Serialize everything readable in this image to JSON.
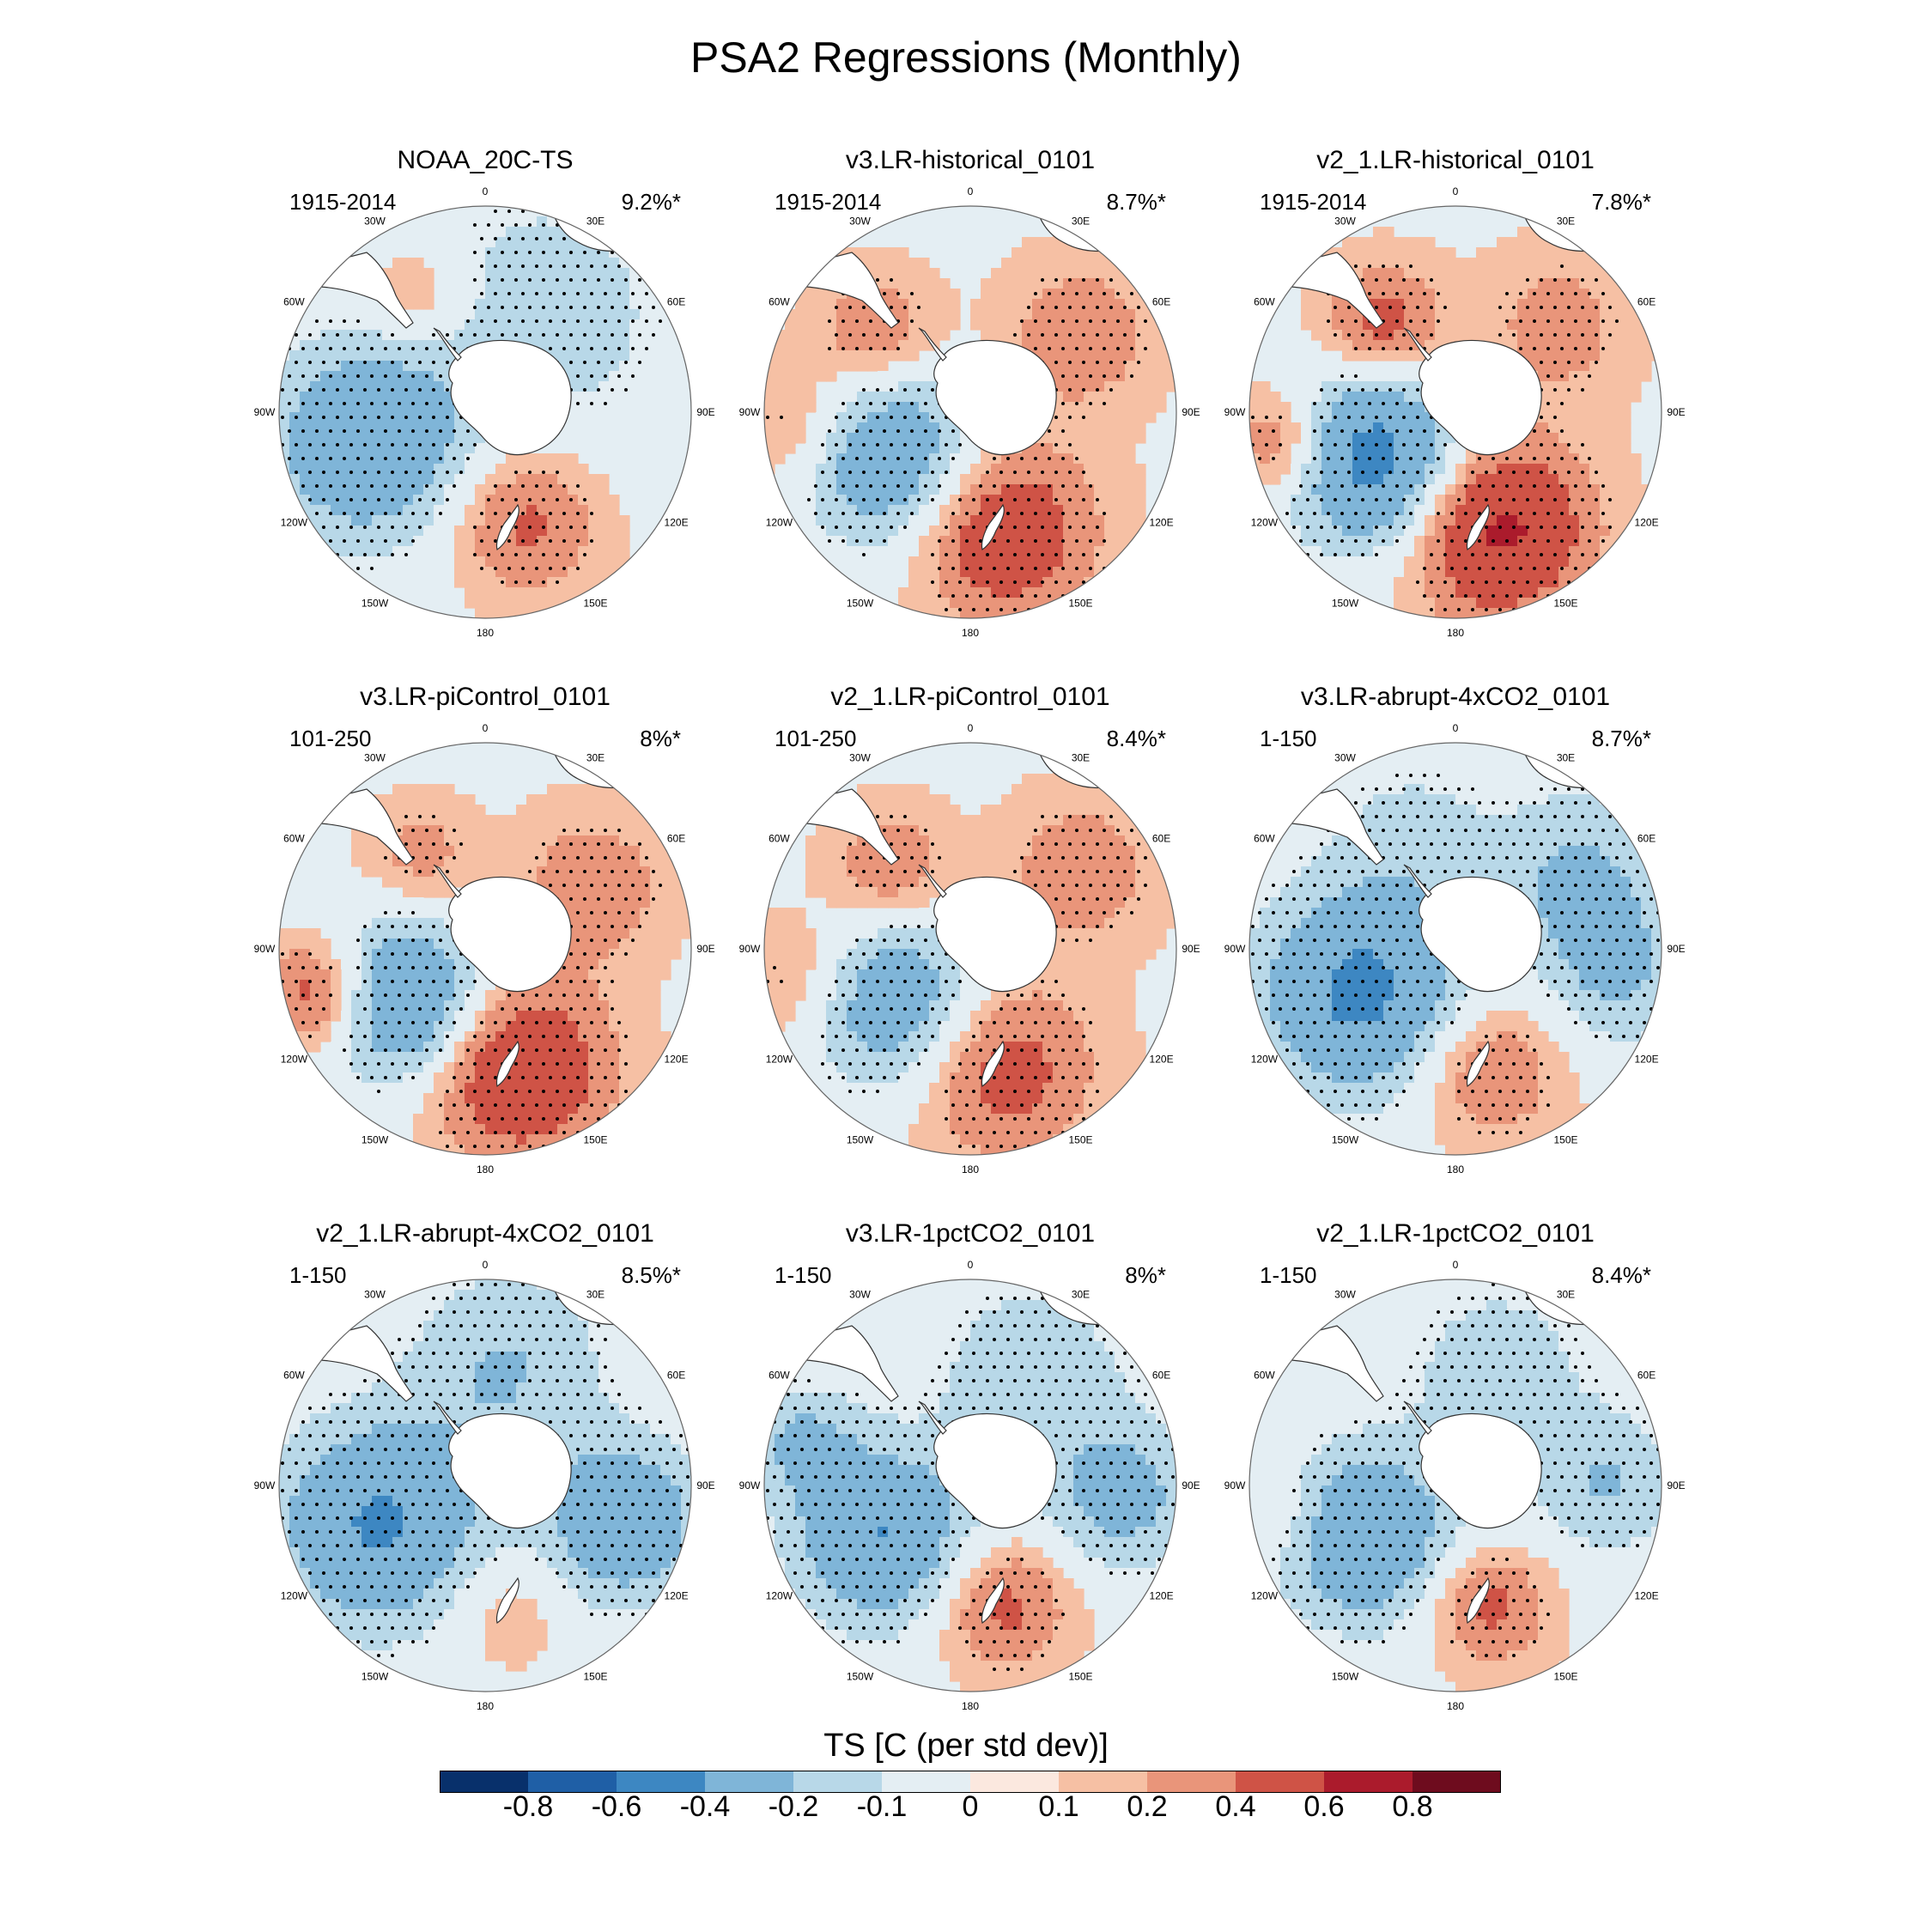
{
  "figure": {
    "title": "PSA2 Regressions (Monthly)",
    "colorbar_title": "TS [C (per std dev)]"
  },
  "colorbar": {
    "colors": [
      "#08306b",
      "#1f5fa6",
      "#3d87c2",
      "#7fb5d8",
      "#b8d8e8",
      "#e4eef3",
      "#fbe8df",
      "#f6c0a4",
      "#e9957a",
      "#cf5346",
      "#ab1b2c",
      "#6e0c1e"
    ],
    "labels": [
      "-0.8",
      "-0.6",
      "-0.4",
      "-0.2",
      "-0.1",
      "0",
      "0.1",
      "0.2",
      "0.4",
      "0.6",
      "0.8"
    ]
  },
  "longitude_labels": [
    "0",
    "30E",
    "60E",
    "90E",
    "120E",
    "150E",
    "180",
    "150W",
    "120W",
    "90W",
    "60W",
    "30W"
  ],
  "panels": [
    {
      "title": "NOAA_20C-TS",
      "period": "1915-2014",
      "variance": "9.2%*",
      "anomalies": [
        {
          "lon": -105,
          "r": 0.6,
          "v": -0.35,
          "s": 0.35
        },
        {
          "lon": 160,
          "r": 0.55,
          "v": 0.25,
          "s": 0.25
        },
        {
          "lon": 30,
          "r": 0.55,
          "v": -0.15,
          "s": 0.5
        },
        {
          "lon": -30,
          "r": 0.65,
          "v": 0.15,
          "s": 0.18
        }
      ]
    },
    {
      "title": "v3.LR-historical_0101",
      "period": "1915-2014",
      "variance": "8.7%*",
      "anomalies": [
        {
          "lon": -120,
          "r": 0.45,
          "v": -0.38,
          "s": 0.3
        },
        {
          "lon": 165,
          "r": 0.6,
          "v": 0.35,
          "s": 0.3
        },
        {
          "lon": 55,
          "r": 0.65,
          "v": 0.18,
          "s": 0.25
        },
        {
          "lon": -50,
          "r": 0.6,
          "v": 0.2,
          "s": 0.2
        },
        {
          "lon": -95,
          "r": 0.85,
          "v": 0.15,
          "s": 0.22
        }
      ]
    },
    {
      "title": "v2_1.LR-historical_0101",
      "period": "1915-2014",
      "variance": "7.8%*",
      "anomalies": [
        {
          "lon": -120,
          "r": 0.45,
          "v": -0.5,
          "s": 0.3
        },
        {
          "lon": 160,
          "r": 0.6,
          "v": 0.45,
          "s": 0.3
        },
        {
          "lon": 50,
          "r": 0.65,
          "v": 0.15,
          "s": 0.25
        },
        {
          "lon": -40,
          "r": 0.55,
          "v": 0.28,
          "s": 0.2
        },
        {
          "lon": -100,
          "r": 0.85,
          "v": 0.25,
          "s": 0.18
        }
      ]
    },
    {
      "title": "v3.LR-piControl_0101",
      "period": "101-250",
      "variance": "8%*",
      "anomalies": [
        {
          "lon": -125,
          "r": 0.45,
          "v": -0.42,
          "s": 0.28
        },
        {
          "lon": 165,
          "r": 0.6,
          "v": 0.4,
          "s": 0.3
        },
        {
          "lon": 60,
          "r": 0.6,
          "v": 0.18,
          "s": 0.25
        },
        {
          "lon": -35,
          "r": 0.55,
          "v": 0.15,
          "s": 0.18
        },
        {
          "lon": -105,
          "r": 0.85,
          "v": 0.3,
          "s": 0.18
        }
      ]
    },
    {
      "title": "v2_1.LR-piControl_0101",
      "period": "101-250",
      "variance": "8.4%*",
      "anomalies": [
        {
          "lon": -125,
          "r": 0.45,
          "v": -0.35,
          "s": 0.3
        },
        {
          "lon": 165,
          "r": 0.6,
          "v": 0.28,
          "s": 0.3
        },
        {
          "lon": 55,
          "r": 0.65,
          "v": 0.18,
          "s": 0.25
        },
        {
          "lon": -45,
          "r": 0.55,
          "v": 0.2,
          "s": 0.2
        },
        {
          "lon": -100,
          "r": 0.85,
          "v": 0.15,
          "s": 0.22
        }
      ]
    },
    {
      "title": "v3.LR-abrupt-4xCO2_0101",
      "period": "1-150",
      "variance": "8.7%*",
      "anomalies": [
        {
          "lon": -115,
          "r": 0.5,
          "v": -0.45,
          "s": 0.35
        },
        {
          "lon": 165,
          "r": 0.6,
          "v": 0.22,
          "s": 0.25
        },
        {
          "lon": 60,
          "r": 0.7,
          "v": -0.22,
          "s": 0.3
        },
        {
          "lon": 100,
          "r": 0.8,
          "v": -0.2,
          "s": 0.25
        },
        {
          "lon": -20,
          "r": 0.6,
          "v": -0.12,
          "s": 0.3
        }
      ]
    },
    {
      "title": "v2_1.LR-abrupt-4xCO2_0101",
      "period": "1-150",
      "variance": "8.5%*",
      "anomalies": [
        {
          "lon": -110,
          "r": 0.55,
          "v": -0.42,
          "s": 0.35
        },
        {
          "lon": 105,
          "r": 0.7,
          "v": -0.35,
          "s": 0.28
        },
        {
          "lon": 10,
          "r": 0.6,
          "v": -0.2,
          "s": 0.35
        },
        {
          "lon": 170,
          "r": 0.6,
          "v": 0.1,
          "s": 0.2
        }
      ]
    },
    {
      "title": "v3.LR-1pctCO2_0101",
      "period": "1-150",
      "variance": "8%*",
      "anomalies": [
        {
          "lon": -120,
          "r": 0.5,
          "v": -0.4,
          "s": 0.3
        },
        {
          "lon": 165,
          "r": 0.6,
          "v": 0.25,
          "s": 0.22
        },
        {
          "lon": 30,
          "r": 0.6,
          "v": -0.18,
          "s": 0.35
        },
        {
          "lon": 95,
          "r": 0.75,
          "v": -0.25,
          "s": 0.25
        },
        {
          "lon": -75,
          "r": 0.85,
          "v": -0.2,
          "s": 0.2
        }
      ]
    },
    {
      "title": "v2_1.LR-1pctCO2_0101",
      "period": "1-150",
      "variance": "8.4%*",
      "anomalies": [
        {
          "lon": -120,
          "r": 0.5,
          "v": -0.38,
          "s": 0.3
        },
        {
          "lon": 165,
          "r": 0.6,
          "v": 0.25,
          "s": 0.2
        },
        {
          "lon": 20,
          "r": 0.6,
          "v": -0.15,
          "s": 0.35
        },
        {
          "lon": 90,
          "r": 0.75,
          "v": -0.2,
          "s": 0.25
        },
        {
          "lon": -100,
          "r": 0.85,
          "v": 0.1,
          "s": 0.15
        }
      ]
    }
  ]
}
